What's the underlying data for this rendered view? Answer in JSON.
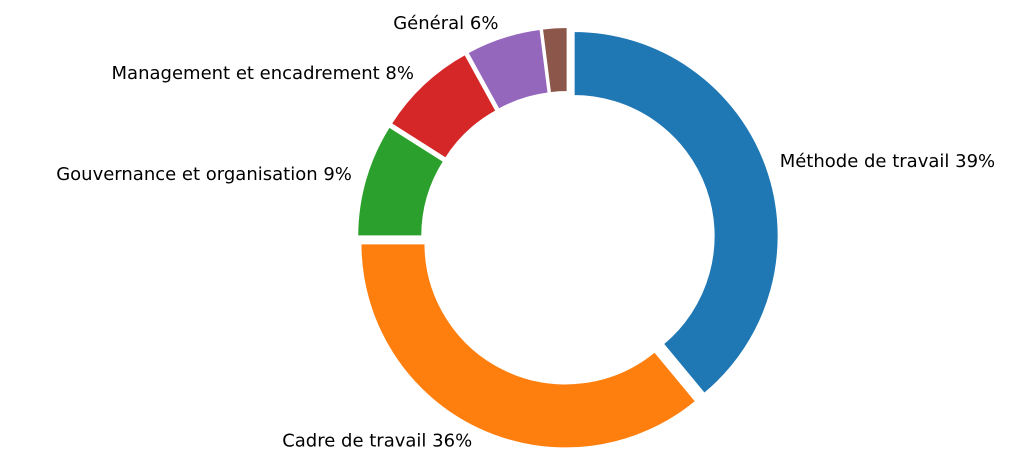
{
  "chart_data": {
    "type": "donut",
    "categories": [
      "Méthode de travail",
      "Cadre de travail",
      "Gouvernance et organisation",
      "Management et encadrement",
      "Général",
      null
    ],
    "values": [
      39,
      36,
      9,
      8,
      6,
      2
    ],
    "value_labels": [
      "39%",
      "36%",
      "9%",
      "8%",
      "6%",
      null
    ],
    "colors": [
      "#1f77b4",
      "#ff7f0e",
      "#2ca02c",
      "#d62728",
      "#9467bd",
      "#8c564b"
    ],
    "start_angle": 0,
    "direction": "clockwise"
  }
}
